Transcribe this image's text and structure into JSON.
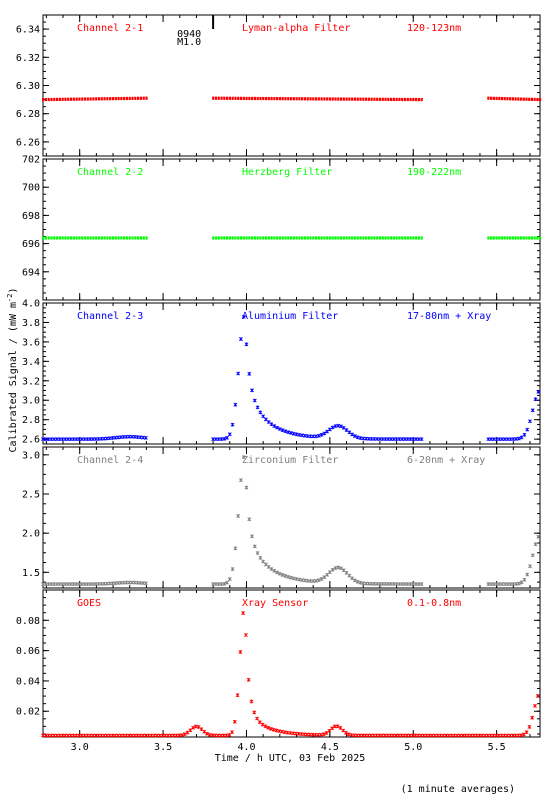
{
  "chart_data": [
    {
      "type": "scatter",
      "header": {
        "channel": "Channel 2-1",
        "filter": "Lyman-alpha Filter",
        "band": "120-123nm"
      },
      "color": "#ff0000",
      "ylim": [
        6.25,
        6.35
      ],
      "yticks": [
        6.26,
        6.28,
        6.3,
        6.32,
        6.34
      ],
      "ytick_labels": [
        "6.26",
        "6.28",
        "6.30",
        "6.32",
        "6.34"
      ],
      "segments": [
        {
          "x": [
            2.78,
            3.4
          ],
          "y": [
            6.29,
            6.291
          ]
        },
        {
          "x": [
            3.8,
            5.05
          ],
          "y": [
            6.291,
            6.29
          ]
        },
        {
          "x": [
            5.45,
            5.76
          ],
          "y": [
            6.291,
            6.29
          ]
        }
      ],
      "annotation": {
        "x": 3.8,
        "lines": [
          "0940",
          "M1.0"
        ]
      }
    },
    {
      "type": "scatter",
      "header": {
        "channel": "Channel 2-2",
        "filter": "Herzberg Filter",
        "band": "190-222nm"
      },
      "color": "#00ff00",
      "ylim": [
        692,
        702
      ],
      "yticks": [
        694,
        696,
        698,
        700,
        702
      ],
      "ytick_labels": [
        "694",
        "696",
        "698",
        "700",
        "702"
      ],
      "segments": [
        {
          "x": [
            2.78,
            3.4
          ],
          "y": [
            696.4,
            696.4
          ]
        },
        {
          "x": [
            3.8,
            5.05
          ],
          "y": [
            696.4,
            696.4
          ]
        },
        {
          "x": [
            5.45,
            5.76
          ],
          "y": [
            696.4,
            696.4
          ]
        }
      ]
    },
    {
      "type": "scatter",
      "header": {
        "channel": "Channel 2-3",
        "filter": "Aluminium Filter",
        "band": "17-80nm + Xray"
      },
      "color": "#0000ff",
      "ylim": [
        2.55,
        4.0
      ],
      "yticks": [
        2.6,
        2.8,
        3.0,
        3.2,
        3.4,
        3.6,
        3.8,
        4.0
      ],
      "ytick_labels": [
        "2.6",
        "2.8",
        "3.0",
        "3.2",
        "3.4",
        "3.6",
        "3.8",
        "4.0"
      ],
      "curve": {
        "baseline": 2.6,
        "bump": [
          3.3,
          0.025,
          0.12
        ],
        "peak": [
          3.99,
          1.28
        ],
        "rise": 0.05,
        "decay": [
          0.45,
          0.14,
          0.25,
          0.05
        ],
        "second": [
          4.55,
          0.13,
          0.08
        ],
        "late": [
          5.76,
          0.5,
          0.06
        ]
      },
      "segments": [
        [
          2.78,
          3.4
        ],
        [
          3.8,
          5.05
        ],
        [
          5.45,
          5.76
        ]
      ]
    },
    {
      "type": "scatter",
      "header": {
        "channel": "Channel 2-4",
        "filter": "Zirconium Filter",
        "band": "6-20nm + Xray"
      },
      "color": "#808080",
      "ylim": [
        1.3,
        3.1
      ],
      "yticks": [
        1.5,
        2.0,
        2.5,
        3.0
      ],
      "ytick_labels": [
        "1.5",
        "2.0",
        "2.5",
        "3.0"
      ],
      "curve": {
        "baseline": 1.35,
        "bump": [
          3.3,
          0.02,
          0.12
        ],
        "peak": [
          3.99,
          1.65
        ],
        "rise": 0.05,
        "decay": [
          0.5,
          0.15,
          0.28,
          0.06
        ],
        "second": [
          4.55,
          0.2,
          0.08
        ],
        "late": [
          5.76,
          0.62,
          0.06
        ]
      },
      "segments": [
        [
          2.78,
          3.4
        ],
        [
          3.8,
          5.05
        ],
        [
          5.45,
          5.76
        ]
      ]
    },
    {
      "type": "scatter",
      "header": {
        "channel": "GOES",
        "filter": "Xray Sensor",
        "band": "0.1-0.8nm"
      },
      "color": "#ff0000",
      "ylim": [
        0.003,
        0.1
      ],
      "yticks": [
        0.02,
        0.04,
        0.06,
        0.08
      ],
      "ytick_labels": [
        "0.02",
        "0.04",
        "0.06",
        "0.08"
      ],
      "curve": {
        "baseline": 0.004,
        "bump": [
          3.7,
          0.006,
          0.05
        ],
        "peak": [
          3.99,
          0.086
        ],
        "rise": 0.04,
        "decay": [
          0.016,
          0.12,
          0.012,
          0.03
        ],
        "second": [
          4.54,
          0.006,
          0.05
        ],
        "late": [
          5.76,
          0.028,
          0.05
        ]
      },
      "segments": [
        [
          2.78,
          5.76
        ]
      ]
    }
  ],
  "x_axis": {
    "xlim": [
      2.78,
      5.76
    ],
    "ticks": [
      3.0,
      3.5,
      4.0,
      4.5,
      5.0,
      5.5
    ],
    "tick_labels": [
      "3.0",
      "3.5",
      "4.0",
      "4.5",
      "5.0",
      "5.5"
    ],
    "label": "Time / h UTC, 03 Feb 2025"
  },
  "y_label": "Calibrated Signal / (mW m",
  "y_label_sup": "-2",
  "y_label_end": ")",
  "footnote": "(1 minute averages)"
}
